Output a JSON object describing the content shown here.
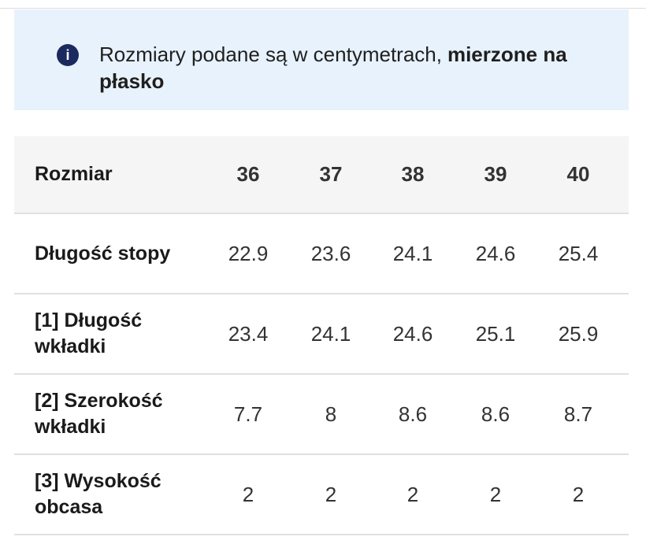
{
  "notice": {
    "text": "Rozmiary podane są w centymetrach,",
    "bold_text": "mierzone na płasko"
  },
  "table": {
    "header": [
      "Rozmiar",
      "36",
      "37",
      "38",
      "39",
      "40"
    ],
    "rows": [
      [
        "Długość stopy",
        "22.9",
        "23.6",
        "24.1",
        "24.6",
        "25.4"
      ],
      [
        "[1] Długość wkładki",
        "23.4",
        "24.1",
        "24.6",
        "25.1",
        "25.9"
      ],
      [
        "[2] Szerokość wkładki",
        "7.7",
        "8",
        "8.6",
        "8.6",
        "8.7"
      ],
      [
        "[3] Wysokość obcasa",
        "2",
        "2",
        "2",
        "2",
        "2"
      ]
    ]
  }
}
